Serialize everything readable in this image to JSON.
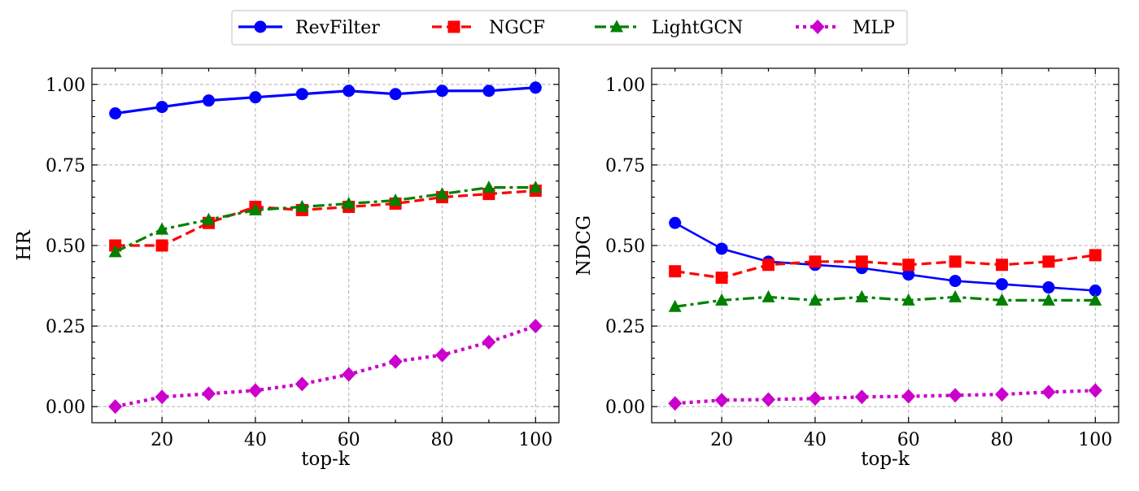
{
  "legend": {
    "placement": "top-center",
    "entries": [
      {
        "label": "RevFilter",
        "color": "#0000ff",
        "marker": "circle",
        "dash": "solid"
      },
      {
        "label": "NGCF",
        "color": "#ff0000",
        "marker": "square",
        "dash": "dashed"
      },
      {
        "label": "LightGCN",
        "color": "#008000",
        "marker": "triangle",
        "dash": "dashdot"
      },
      {
        "label": "MLP",
        "color": "#cc00cc",
        "marker": "diamond",
        "dash": "dotted"
      }
    ]
  },
  "chart_data": [
    {
      "type": "line",
      "xlabel": "top-k",
      "ylabel": "HR",
      "xlim": [
        5,
        105
      ],
      "ylim": [
        -0.05,
        1.05
      ],
      "xticks": [
        20,
        40,
        60,
        80,
        100
      ],
      "yticks": [
        0.0,
        0.25,
        0.5,
        0.75,
        1.0
      ],
      "ytick_labels": [
        "0.00",
        "0.25",
        "0.50",
        "0.75",
        "1.00"
      ],
      "grid": true,
      "x": [
        10,
        20,
        30,
        40,
        50,
        60,
        70,
        80,
        90,
        100
      ],
      "series": [
        {
          "name": "RevFilter",
          "values": [
            0.91,
            0.93,
            0.95,
            0.96,
            0.97,
            0.98,
            0.97,
            0.98,
            0.98,
            0.99
          ]
        },
        {
          "name": "NGCF",
          "values": [
            0.5,
            0.5,
            0.57,
            0.62,
            0.61,
            0.62,
            0.63,
            0.65,
            0.66,
            0.67
          ]
        },
        {
          "name": "LightGCN",
          "values": [
            0.48,
            0.55,
            0.58,
            0.61,
            0.62,
            0.63,
            0.64,
            0.66,
            0.68,
            0.68
          ]
        },
        {
          "name": "MLP",
          "values": [
            0.0,
            0.03,
            0.04,
            0.05,
            0.07,
            0.1,
            0.14,
            0.16,
            0.2,
            0.25
          ]
        }
      ]
    },
    {
      "type": "line",
      "xlabel": "top-k",
      "ylabel": "NDCG",
      "xlim": [
        5,
        105
      ],
      "ylim": [
        -0.05,
        1.05
      ],
      "xticks": [
        20,
        40,
        60,
        80,
        100
      ],
      "yticks": [
        0.0,
        0.25,
        0.5,
        0.75,
        1.0
      ],
      "ytick_labels": [
        "0.00",
        "0.25",
        "0.50",
        "0.75",
        "1.00"
      ],
      "grid": true,
      "x": [
        10,
        20,
        30,
        40,
        50,
        60,
        70,
        80,
        90,
        100
      ],
      "series": [
        {
          "name": "RevFilter",
          "values": [
            0.57,
            0.49,
            0.45,
            0.44,
            0.43,
            0.41,
            0.39,
            0.38,
            0.37,
            0.36
          ]
        },
        {
          "name": "NGCF",
          "values": [
            0.42,
            0.4,
            0.44,
            0.45,
            0.45,
            0.44,
            0.45,
            0.44,
            0.45,
            0.47
          ]
        },
        {
          "name": "LightGCN",
          "values": [
            0.31,
            0.33,
            0.34,
            0.33,
            0.34,
            0.33,
            0.34,
            0.33,
            0.33,
            0.33
          ]
        },
        {
          "name": "MLP",
          "values": [
            0.01,
            0.02,
            0.022,
            0.025,
            0.03,
            0.032,
            0.035,
            0.038,
            0.045,
            0.05
          ]
        }
      ]
    }
  ]
}
